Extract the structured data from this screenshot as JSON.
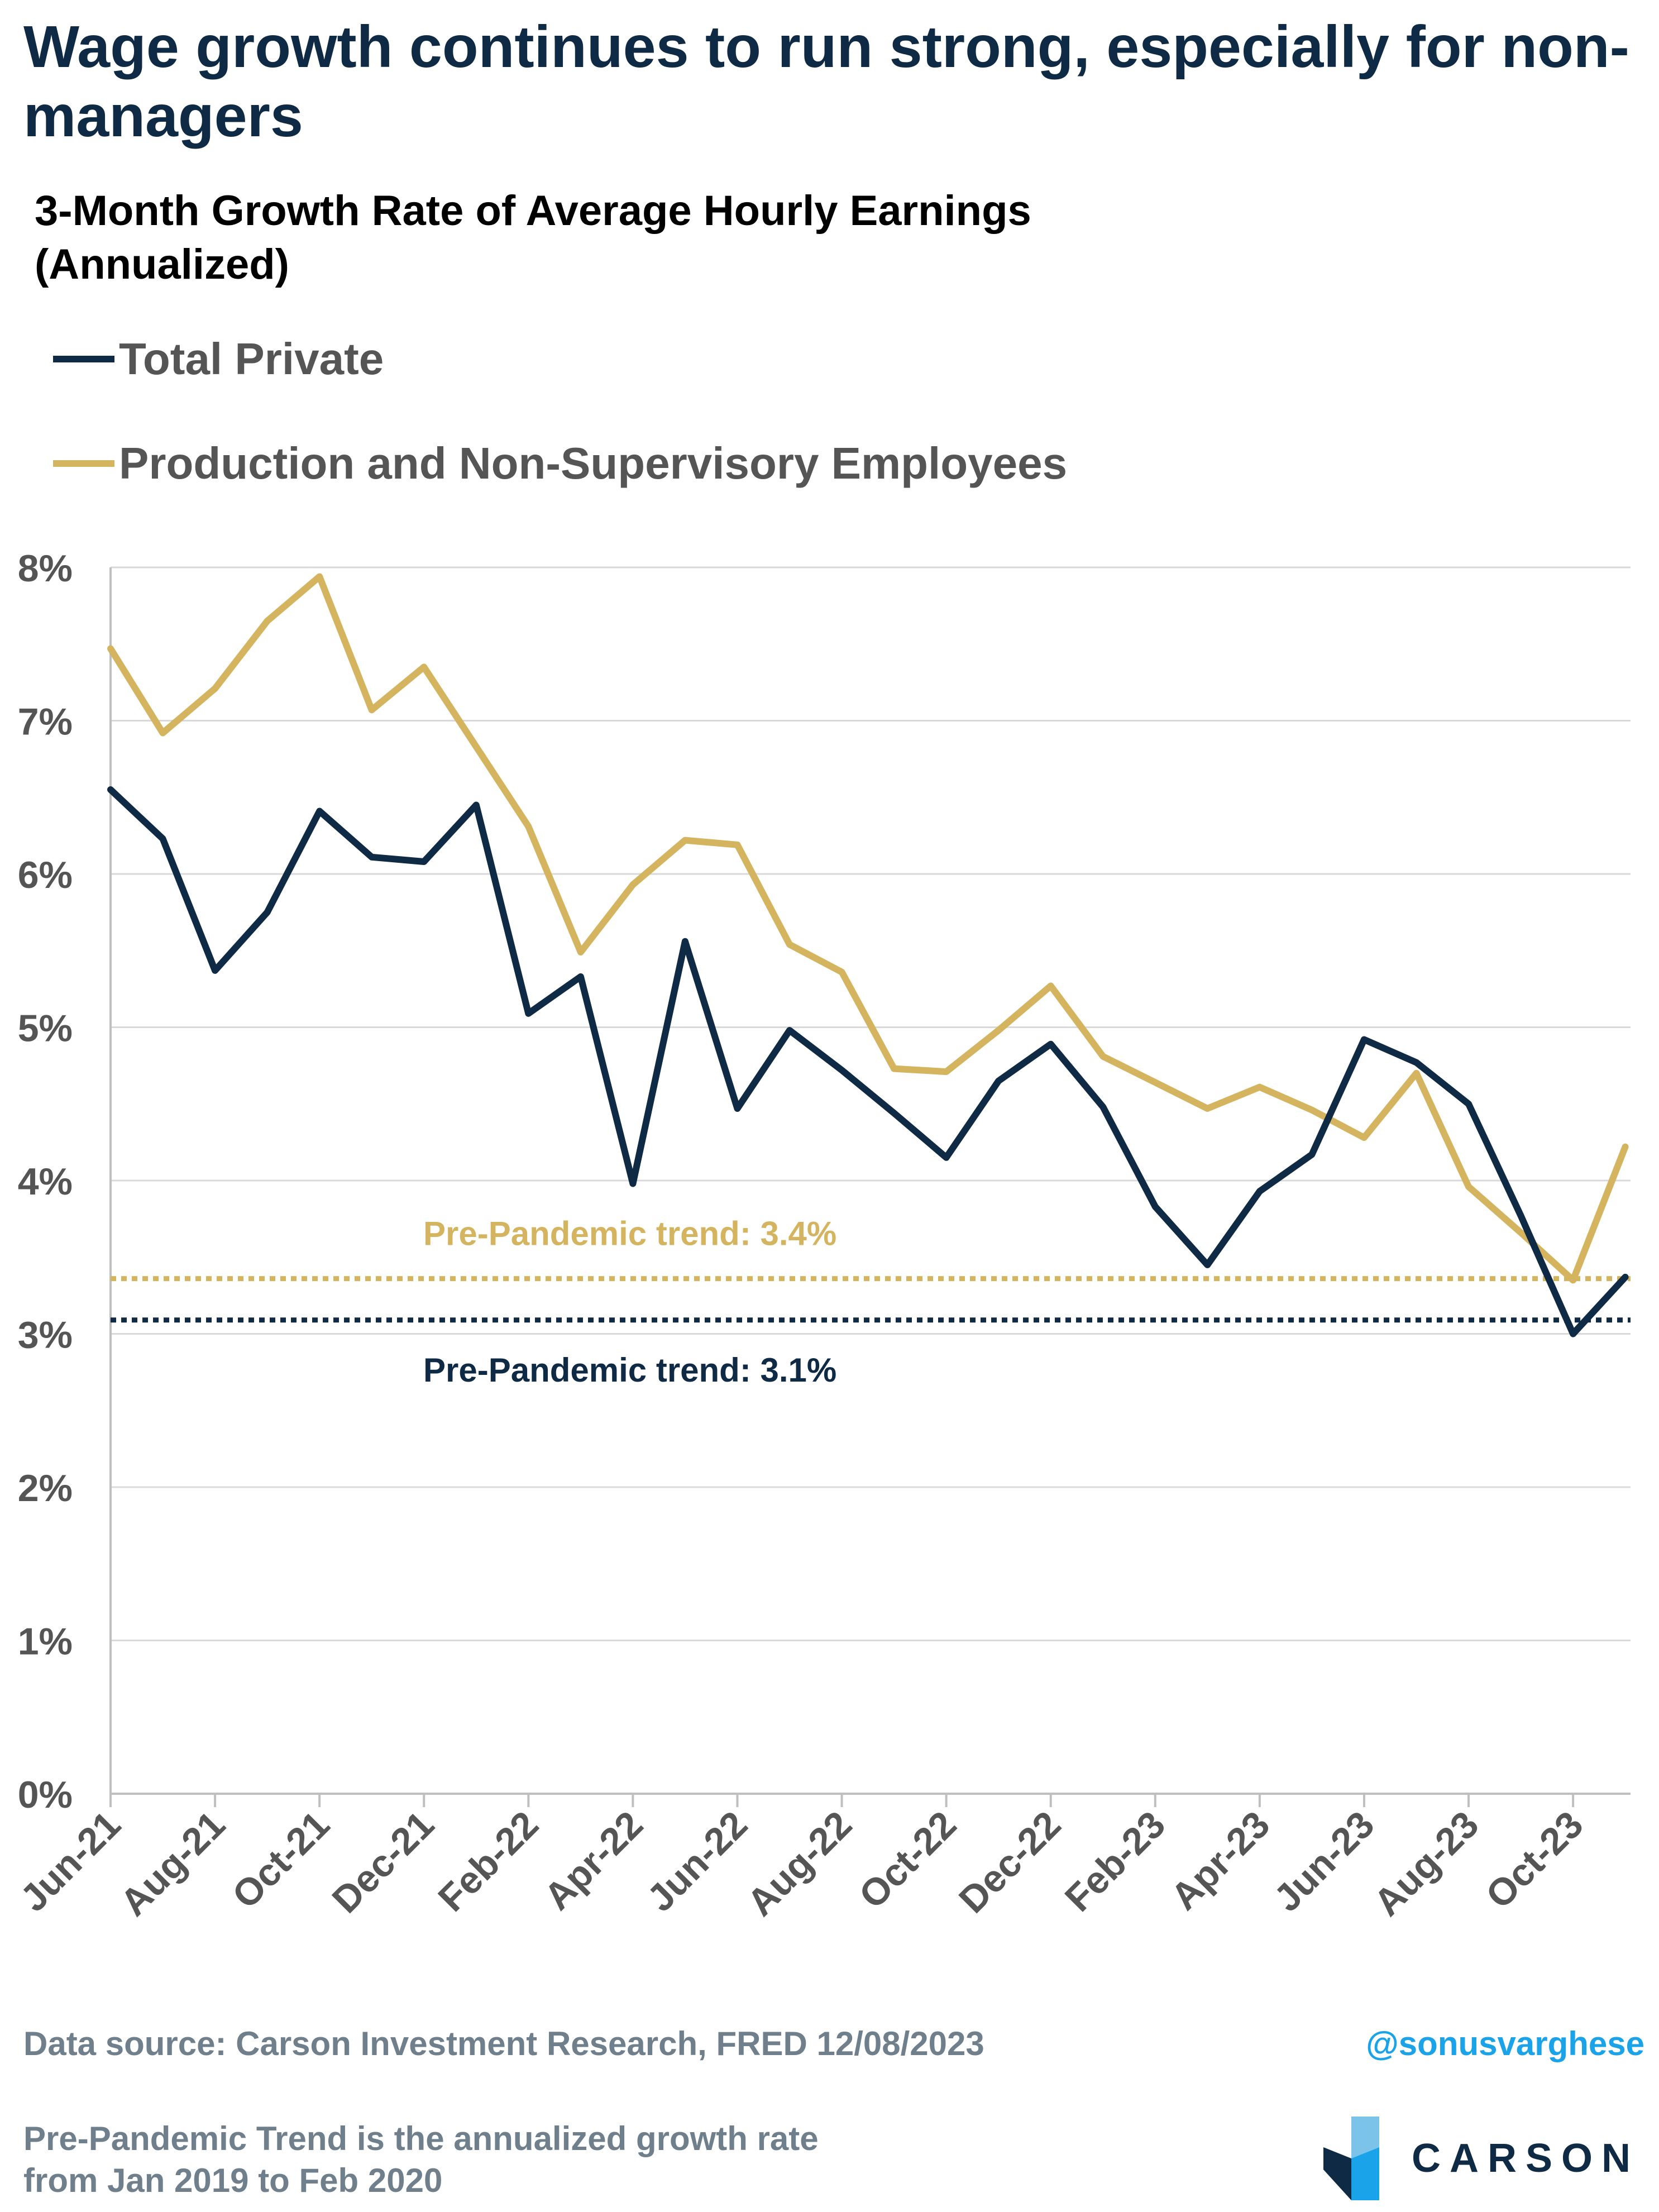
{
  "title": "Wage growth continues to run strong, especially for non-managers",
  "subtitle_line1": "3-Month Growth Rate of Average Hourly Earnings",
  "subtitle_line2": "(Annualized)",
  "colors": {
    "navy": "#0e2a45",
    "gold": "#d4b45f",
    "grid": "#d9d9d9",
    "handle": "#1aa3e8"
  },
  "chart_data": {
    "type": "line",
    "x": [
      "Jun-21",
      "Jul-21",
      "Aug-21",
      "Sep-21",
      "Oct-21",
      "Nov-21",
      "Dec-21",
      "Jan-22",
      "Feb-22",
      "Mar-22",
      "Apr-22",
      "May-22",
      "Jun-22",
      "Jul-22",
      "Aug-22",
      "Sep-22",
      "Oct-22",
      "Nov-22",
      "Dec-22",
      "Jan-23",
      "Feb-23",
      "Mar-23",
      "Apr-23",
      "May-23",
      "Jun-23",
      "Jul-23",
      "Aug-23",
      "Sep-23",
      "Oct-23",
      "Nov-23"
    ],
    "xticks": [
      "Jun-21",
      "Aug-21",
      "Oct-21",
      "Dec-21",
      "Feb-22",
      "Apr-22",
      "Jun-22",
      "Aug-22",
      "Oct-22",
      "Dec-22",
      "Feb-23",
      "Apr-23",
      "Jun-23",
      "Aug-23",
      "Oct-23"
    ],
    "series": [
      {
        "name": "Total Private",
        "color": "#0e2a45",
        "values": [
          6.55,
          6.23,
          5.37,
          5.75,
          6.41,
          6.11,
          6.08,
          6.45,
          5.09,
          5.33,
          3.98,
          5.56,
          4.47,
          4.98,
          4.72,
          4.44,
          4.15,
          4.65,
          4.89,
          4.48,
          3.83,
          3.45,
          3.93,
          4.17,
          4.92,
          4.77,
          4.5,
          3.77,
          3.0,
          3.37
        ]
      },
      {
        "name": "Production and Non-Supervisory Employees",
        "color": "#d4b45f",
        "values": [
          7.47,
          6.92,
          7.21,
          7.65,
          7.94,
          7.07,
          7.35,
          6.83,
          6.31,
          5.49,
          5.93,
          6.22,
          6.19,
          5.54,
          5.36,
          4.73,
          4.71,
          4.98,
          5.27,
          4.81,
          4.64,
          4.47,
          4.61,
          4.46,
          4.28,
          4.7,
          3.96,
          3.66,
          3.35,
          4.22
        ]
      }
    ],
    "reference_lines": [
      {
        "value": 3.36,
        "label": "Pre-Pandemic trend: 3.4%",
        "color": "#d4b45f"
      },
      {
        "value": 3.09,
        "label": "Pre-Pandemic trend: 3.1%",
        "color": "#0e2a45"
      }
    ],
    "yticks": [
      "0%",
      "1%",
      "2%",
      "3%",
      "4%",
      "5%",
      "6%",
      "7%",
      "8%"
    ],
    "ylim": [
      0,
      8
    ],
    "grid": true,
    "legend_position": "top-left"
  },
  "footer": {
    "source": "Data source: Carson Investment Research, FRED   12/08/2023",
    "note_line1": "Pre-Pandemic Trend is the annualized growth rate",
    "note_line2": "from Jan 2019 to Feb 2020",
    "handle": "@sonusvarghese",
    "brand": "CARSON"
  }
}
